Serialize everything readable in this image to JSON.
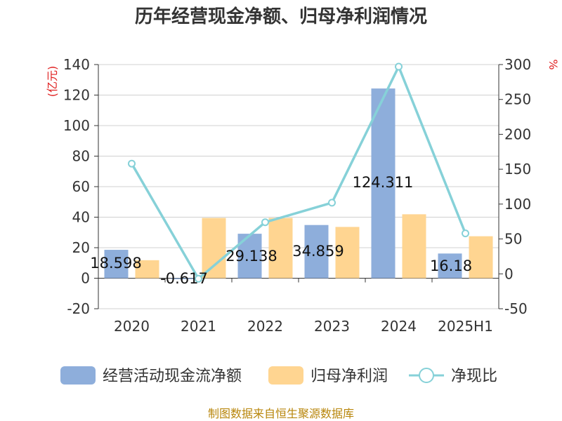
{
  "chart_data": {
    "type": "bar",
    "title": "历年经营现金净额、归母净利润情况",
    "categories": [
      "2020",
      "2021",
      "2022",
      "2023",
      "2024",
      "2025H1"
    ],
    "y_left": {
      "unit": "(亿元)",
      "range": [
        -20,
        140
      ],
      "ticks": [
        -20,
        0,
        20,
        40,
        60,
        80,
        100,
        120,
        140
      ]
    },
    "y_right": {
      "unit": "%",
      "range": [
        -50,
        300
      ],
      "ticks": [
        -50,
        0,
        50,
        100,
        150,
        200,
        250,
        300
      ]
    },
    "series": [
      {
        "name": "经营活动现金流净额",
        "type": "bar",
        "axis": "left",
        "color": "#8eaedb",
        "values": [
          18.598,
          -0.617,
          29.138,
          34.859,
          124.311,
          16.18
        ],
        "labels": [
          "18.598",
          "-0.617",
          "29.138",
          "34.859",
          "124.311",
          "16.18"
        ]
      },
      {
        "name": "归母净利润",
        "type": "bar",
        "axis": "left",
        "color": "#ffd591",
        "values": [
          11.8,
          39.5,
          39.5,
          33.6,
          41.9,
          27.5
        ]
      },
      {
        "name": "净现比",
        "type": "line",
        "axis": "right",
        "color": "#86d1d8",
        "values": [
          158,
          -7,
          74,
          102,
          297,
          58
        ]
      }
    ],
    "grid": true,
    "legend": "bottom",
    "source": "制图数据来自恒生聚源数据库"
  }
}
